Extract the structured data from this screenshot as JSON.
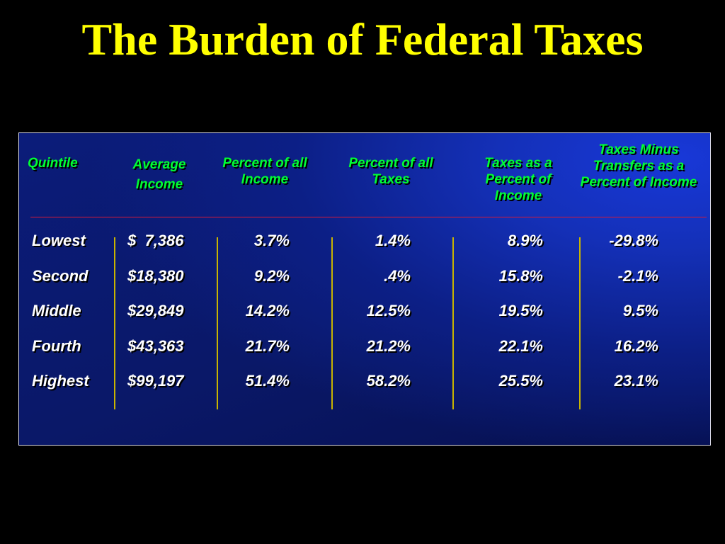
{
  "title": "The Burden of Federal Taxes",
  "colors": {
    "title": "#FFFF00",
    "header": "#00FF33",
    "cell": "#FFFFFF",
    "rule": "#D8193A",
    "divider": "#C8B400"
  },
  "headers": [
    "Quintile",
    "Average Income",
    "Percent of all Income",
    "Percent of all Taxes",
    "Taxes as a Percent of Income",
    "Taxes Minus Transfers as a Percent of Income"
  ],
  "rows": [
    [
      "Lowest",
      "$  7,386",
      "3.7%",
      "1.4%",
      "8.9%",
      "-29.8%"
    ],
    [
      "Second",
      "$18,380",
      "9.2%",
      ".4%",
      "15.8%",
      "-2.1%"
    ],
    [
      "Middle",
      "$29,849",
      "14.2%",
      "12.5%",
      "19.5%",
      "9.5%"
    ],
    [
      "Fourth",
      "$43,363",
      "21.7%",
      "21.2%",
      "22.1%",
      "16.2%"
    ],
    [
      "Highest",
      "$99,197",
      "51.4%",
      "58.2%",
      "25.5%",
      "23.1%"
    ]
  ]
}
